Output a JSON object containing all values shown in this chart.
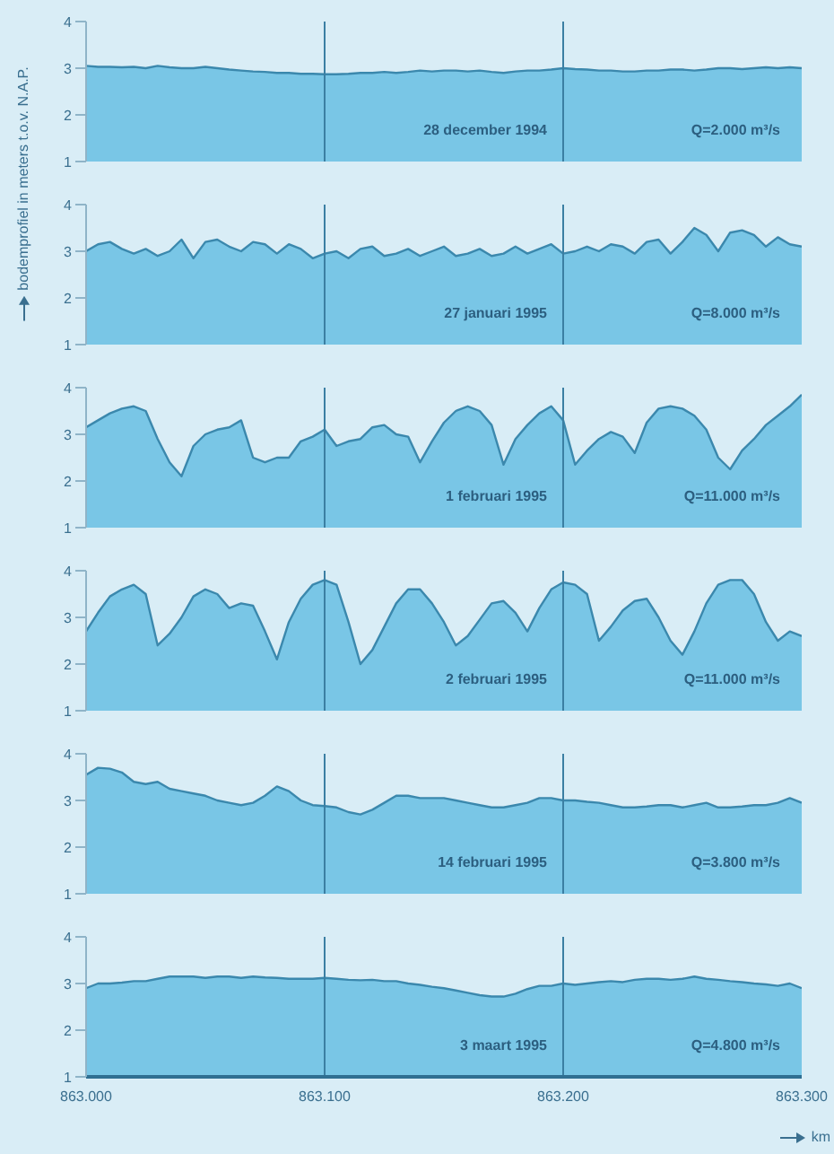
{
  "chart_data": [
    {
      "type": "area",
      "ylabel": "bodemprofiel in meters t.o.v. N.A.P.",
      "annotations": [
        "28 december 1994",
        "Q=2.000 m³/s"
      ],
      "xlim": [
        863,
        863.3
      ],
      "ylim": [
        1,
        4
      ],
      "yticks": [
        1,
        2,
        3,
        4
      ],
      "tick_labels": "y",
      "ref_lines": [
        {
          "axis": "x",
          "value": 863.1,
          "color": "#3b7fa3"
        },
        {
          "axis": "x",
          "value": 863.2,
          "color": "#3b7fa3"
        }
      ],
      "x": [
        863,
        863.005,
        863.01,
        863.015,
        863.02,
        863.025,
        863.03,
        863.035,
        863.04,
        863.045,
        863.05,
        863.055,
        863.06,
        863.065,
        863.07,
        863.075,
        863.08,
        863.085,
        863.09,
        863.095,
        863.1,
        863.105,
        863.11,
        863.115,
        863.12,
        863.125,
        863.13,
        863.135,
        863.14,
        863.145,
        863.15,
        863.155,
        863.16,
        863.165,
        863.17,
        863.175,
        863.18,
        863.185,
        863.19,
        863.195,
        863.2,
        863.205,
        863.21,
        863.215,
        863.22,
        863.225,
        863.23,
        863.235,
        863.24,
        863.245,
        863.25,
        863.255,
        863.26,
        863.265,
        863.27,
        863.275,
        863.28,
        863.285,
        863.29,
        863.295,
        863.3
      ],
      "color": "#79c6e6",
      "values": [
        3.05,
        3.03,
        3.03,
        3.02,
        3.03,
        3.0,
        3.05,
        3.02,
        3.0,
        3.0,
        3.03,
        3.0,
        2.97,
        2.95,
        2.93,
        2.92,
        2.9,
        2.9,
        2.88,
        2.88,
        2.87,
        2.87,
        2.88,
        2.9,
        2.9,
        2.92,
        2.9,
        2.92,
        2.95,
        2.93,
        2.95,
        2.95,
        2.93,
        2.95,
        2.92,
        2.9,
        2.93,
        2.95,
        2.95,
        2.97,
        3.0,
        2.98,
        2.97,
        2.95,
        2.95,
        2.93,
        2.93,
        2.95,
        2.95,
        2.97,
        2.97,
        2.95,
        2.97,
        3.0,
        3.0,
        2.98,
        3.0,
        3.02,
        3.0,
        3.02,
        3.0
      ]
    },
    {
      "type": "area",
      "annotations": [
        "27 januari 1995",
        "Q=8.000 m³/s"
      ],
      "xlim": [
        863,
        863.3
      ],
      "ylim": [
        1,
        4
      ],
      "yticks": [
        1,
        2,
        3,
        4
      ],
      "tick_labels": "y",
      "ref_lines": [
        {
          "axis": "x",
          "value": 863.1,
          "color": "#3b7fa3"
        },
        {
          "axis": "x",
          "value": 863.2,
          "color": "#3b7fa3"
        }
      ],
      "x": [
        863,
        863.005,
        863.01,
        863.015,
        863.02,
        863.025,
        863.03,
        863.035,
        863.04,
        863.045,
        863.05,
        863.055,
        863.06,
        863.065,
        863.07,
        863.075,
        863.08,
        863.085,
        863.09,
        863.095,
        863.1,
        863.105,
        863.11,
        863.115,
        863.12,
        863.125,
        863.13,
        863.135,
        863.14,
        863.145,
        863.15,
        863.155,
        863.16,
        863.165,
        863.17,
        863.175,
        863.18,
        863.185,
        863.19,
        863.195,
        863.2,
        863.205,
        863.21,
        863.215,
        863.22,
        863.225,
        863.23,
        863.235,
        863.24,
        863.245,
        863.25,
        863.255,
        863.26,
        863.265,
        863.27,
        863.275,
        863.28,
        863.285,
        863.29,
        863.295,
        863.3
      ],
      "color": "#79c6e6",
      "values": [
        3.0,
        3.15,
        3.2,
        3.05,
        2.95,
        3.05,
        2.9,
        3.0,
        3.25,
        2.85,
        3.2,
        3.25,
        3.1,
        3.0,
        3.2,
        3.15,
        2.95,
        3.15,
        3.05,
        2.85,
        2.95,
        3.0,
        2.85,
        3.05,
        3.1,
        2.9,
        2.95,
        3.05,
        2.9,
        3.0,
        3.1,
        2.9,
        2.95,
        3.05,
        2.9,
        2.95,
        3.1,
        2.95,
        3.05,
        3.15,
        2.95,
        3.0,
        3.1,
        3.0,
        3.15,
        3.1,
        2.95,
        3.2,
        3.25,
        2.95,
        3.2,
        3.5,
        3.35,
        3.0,
        3.4,
        3.45,
        3.35,
        3.1,
        3.3,
        3.15,
        3.1
      ]
    },
    {
      "type": "area",
      "annotations": [
        "1 februari 1995",
        "Q=11.000 m³/s"
      ],
      "xlim": [
        863,
        863.3
      ],
      "ylim": [
        1,
        4
      ],
      "yticks": [
        1,
        2,
        3,
        4
      ],
      "tick_labels": "y",
      "ref_lines": [
        {
          "axis": "x",
          "value": 863.1,
          "color": "#3b7fa3"
        },
        {
          "axis": "x",
          "value": 863.2,
          "color": "#3b7fa3"
        }
      ],
      "x": [
        863,
        863.005,
        863.01,
        863.015,
        863.02,
        863.025,
        863.03,
        863.035,
        863.04,
        863.045,
        863.05,
        863.055,
        863.06,
        863.065,
        863.07,
        863.075,
        863.08,
        863.085,
        863.09,
        863.095,
        863.1,
        863.105,
        863.11,
        863.115,
        863.12,
        863.125,
        863.13,
        863.135,
        863.14,
        863.145,
        863.15,
        863.155,
        863.16,
        863.165,
        863.17,
        863.175,
        863.18,
        863.185,
        863.19,
        863.195,
        863.2,
        863.205,
        863.21,
        863.215,
        863.22,
        863.225,
        863.23,
        863.235,
        863.24,
        863.245,
        863.25,
        863.255,
        863.26,
        863.265,
        863.27,
        863.275,
        863.28,
        863.285,
        863.29,
        863.295,
        863.3
      ],
      "color": "#79c6e6",
      "values": [
        3.15,
        3.3,
        3.45,
        3.55,
        3.6,
        3.5,
        2.9,
        2.4,
        2.1,
        2.75,
        3.0,
        3.1,
        3.15,
        3.3,
        2.5,
        2.4,
        2.5,
        2.5,
        2.85,
        2.95,
        3.1,
        2.75,
        2.85,
        2.9,
        3.15,
        3.2,
        3.0,
        2.95,
        2.4,
        2.85,
        3.25,
        3.5,
        3.6,
        3.5,
        3.2,
        2.35,
        2.9,
        3.2,
        3.45,
        3.6,
        3.3,
        2.35,
        2.65,
        2.9,
        3.05,
        2.95,
        2.6,
        3.25,
        3.55,
        3.6,
        3.55,
        3.4,
        3.1,
        2.5,
        2.25,
        2.65,
        2.9,
        3.2,
        3.4,
        3.6,
        3.85
      ]
    },
    {
      "type": "area",
      "annotations": [
        "2 februari 1995",
        "Q=11.000 m³/s"
      ],
      "xlim": [
        863,
        863.3
      ],
      "ylim": [
        1,
        4
      ],
      "yticks": [
        1,
        2,
        3,
        4
      ],
      "tick_labels": "y",
      "ref_lines": [
        {
          "axis": "x",
          "value": 863.1,
          "color": "#3b7fa3"
        },
        {
          "axis": "x",
          "value": 863.2,
          "color": "#3b7fa3"
        }
      ],
      "x": [
        863,
        863.005,
        863.01,
        863.015,
        863.02,
        863.025,
        863.03,
        863.035,
        863.04,
        863.045,
        863.05,
        863.055,
        863.06,
        863.065,
        863.07,
        863.075,
        863.08,
        863.085,
        863.09,
        863.095,
        863.1,
        863.105,
        863.11,
        863.115,
        863.12,
        863.125,
        863.13,
        863.135,
        863.14,
        863.145,
        863.15,
        863.155,
        863.16,
        863.165,
        863.17,
        863.175,
        863.18,
        863.185,
        863.19,
        863.195,
        863.2,
        863.205,
        863.21,
        863.215,
        863.22,
        863.225,
        863.23,
        863.235,
        863.24,
        863.245,
        863.25,
        863.255,
        863.26,
        863.265,
        863.27,
        863.275,
        863.28,
        863.285,
        863.29,
        863.295,
        863.3
      ],
      "color": "#79c6e6",
      "values": [
        2.7,
        3.1,
        3.45,
        3.6,
        3.7,
        3.5,
        2.4,
        2.65,
        3.0,
        3.45,
        3.6,
        3.5,
        3.2,
        3.3,
        3.25,
        2.7,
        2.1,
        2.9,
        3.4,
        3.7,
        3.8,
        3.7,
        2.9,
        2.0,
        2.3,
        2.8,
        3.3,
        3.6,
        3.6,
        3.3,
        2.9,
        2.4,
        2.6,
        2.95,
        3.3,
        3.35,
        3.1,
        2.7,
        3.2,
        3.6,
        3.75,
        3.7,
        3.5,
        2.5,
        2.8,
        3.15,
        3.35,
        3.4,
        3.0,
        2.5,
        2.2,
        2.7,
        3.3,
        3.7,
        3.8,
        3.8,
        3.5,
        2.9,
        2.5,
        2.7,
        2.6
      ]
    },
    {
      "type": "area",
      "annotations": [
        "14 februari 1995",
        "Q=3.800 m³/s"
      ],
      "xlim": [
        863,
        863.3
      ],
      "ylim": [
        1,
        4
      ],
      "yticks": [
        1,
        2,
        3,
        4
      ],
      "tick_labels": "y",
      "ref_lines": [
        {
          "axis": "x",
          "value": 863.1,
          "color": "#3b7fa3"
        },
        {
          "axis": "x",
          "value": 863.2,
          "color": "#3b7fa3"
        }
      ],
      "x": [
        863,
        863.005,
        863.01,
        863.015,
        863.02,
        863.025,
        863.03,
        863.035,
        863.04,
        863.045,
        863.05,
        863.055,
        863.06,
        863.065,
        863.07,
        863.075,
        863.08,
        863.085,
        863.09,
        863.095,
        863.1,
        863.105,
        863.11,
        863.115,
        863.12,
        863.125,
        863.13,
        863.135,
        863.14,
        863.145,
        863.15,
        863.155,
        863.16,
        863.165,
        863.17,
        863.175,
        863.18,
        863.185,
        863.19,
        863.195,
        863.2,
        863.205,
        863.21,
        863.215,
        863.22,
        863.225,
        863.23,
        863.235,
        863.24,
        863.245,
        863.25,
        863.255,
        863.26,
        863.265,
        863.27,
        863.275,
        863.28,
        863.285,
        863.29,
        863.295,
        863.3
      ],
      "color": "#79c6e6",
      "values": [
        3.55,
        3.7,
        3.68,
        3.6,
        3.4,
        3.35,
        3.4,
        3.25,
        3.2,
        3.15,
        3.1,
        3.0,
        2.95,
        2.9,
        2.95,
        3.1,
        3.3,
        3.2,
        3.0,
        2.9,
        2.88,
        2.85,
        2.75,
        2.7,
        2.8,
        2.95,
        3.1,
        3.1,
        3.05,
        3.05,
        3.05,
        3.0,
        2.95,
        2.9,
        2.85,
        2.85,
        2.9,
        2.95,
        3.05,
        3.05,
        3.0,
        3.0,
        2.97,
        2.95,
        2.9,
        2.85,
        2.85,
        2.87,
        2.9,
        2.9,
        2.85,
        2.9,
        2.95,
        2.85,
        2.85,
        2.87,
        2.9,
        2.9,
        2.95,
        3.05,
        2.95
      ]
    },
    {
      "type": "area",
      "annotations": [
        "3 maart 1995",
        "Q=4.800 m³/s"
      ],
      "xlabel": "km",
      "xlim": [
        863,
        863.3
      ],
      "xticks": [
        {
          "value": 863,
          "label": "863.000"
        },
        {
          "value": 863.1,
          "label": "863.100"
        },
        {
          "value": 863.2,
          "label": "863.200"
        },
        {
          "value": 863.3,
          "label": "863.300"
        }
      ],
      "ylim": [
        1,
        4
      ],
      "yticks": [
        1,
        2,
        3,
        4
      ],
      "ref_lines": [
        {
          "axis": "x",
          "value": 863.1,
          "color": "#3b7fa3"
        },
        {
          "axis": "x",
          "value": 863.2,
          "color": "#3b7fa3"
        }
      ],
      "x": [
        863,
        863.005,
        863.01,
        863.015,
        863.02,
        863.025,
        863.03,
        863.035,
        863.04,
        863.045,
        863.05,
        863.055,
        863.06,
        863.065,
        863.07,
        863.075,
        863.08,
        863.085,
        863.09,
        863.095,
        863.1,
        863.105,
        863.11,
        863.115,
        863.12,
        863.125,
        863.13,
        863.135,
        863.14,
        863.145,
        863.15,
        863.155,
        863.16,
        863.165,
        863.17,
        863.175,
        863.18,
        863.185,
        863.19,
        863.195,
        863.2,
        863.205,
        863.21,
        863.215,
        863.22,
        863.225,
        863.23,
        863.235,
        863.24,
        863.245,
        863.25,
        863.255,
        863.26,
        863.265,
        863.27,
        863.275,
        863.28,
        863.285,
        863.29,
        863.295,
        863.3
      ],
      "color": "#79c6e6",
      "values": [
        2.9,
        3.0,
        3.0,
        3.02,
        3.05,
        3.05,
        3.1,
        3.15,
        3.15,
        3.15,
        3.12,
        3.15,
        3.15,
        3.12,
        3.15,
        3.13,
        3.12,
        3.1,
        3.1,
        3.1,
        3.12,
        3.1,
        3.08,
        3.07,
        3.08,
        3.05,
        3.05,
        3.0,
        2.97,
        2.93,
        2.9,
        2.85,
        2.8,
        2.75,
        2.72,
        2.72,
        2.78,
        2.88,
        2.95,
        2.95,
        3.0,
        2.97,
        3.0,
        3.03,
        3.05,
        3.03,
        3.08,
        3.1,
        3.1,
        3.08,
        3.1,
        3.15,
        3.1,
        3.08,
        3.05,
        3.03,
        3.0,
        2.98,
        2.95,
        3.0,
        2.9
      ]
    }
  ]
}
